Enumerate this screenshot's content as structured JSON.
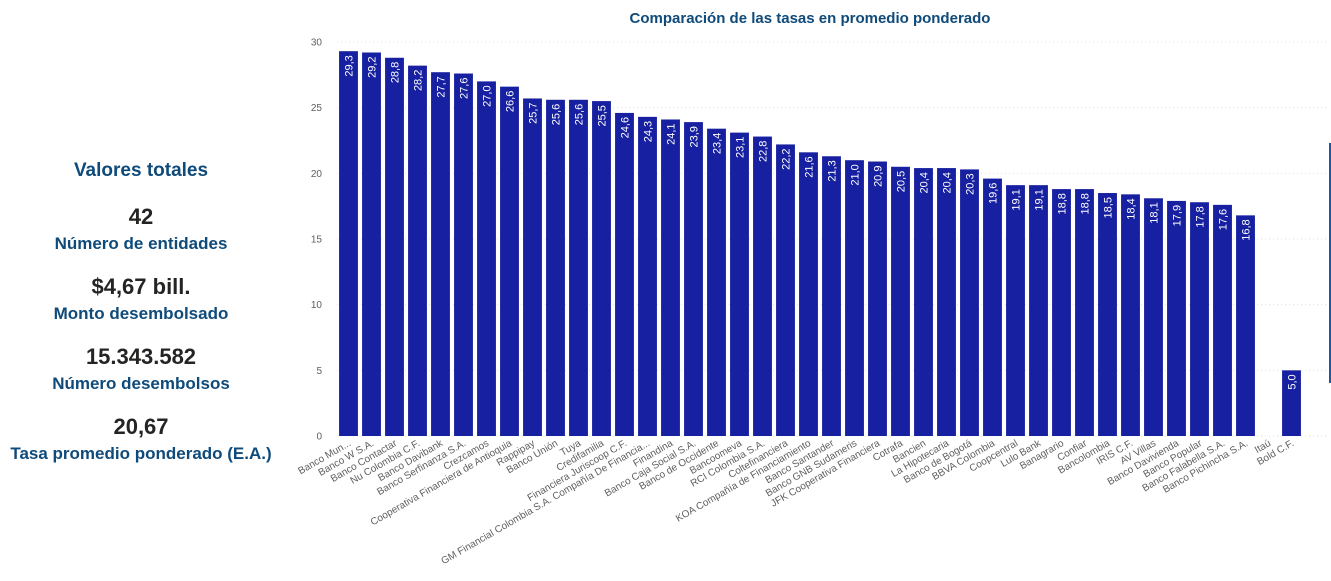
{
  "kpis": {
    "heading": "Valores totales",
    "items": [
      {
        "value": "42",
        "label": "Número de entidades"
      },
      {
        "value": "$4,67 bill.",
        "label": "Monto desembolsado"
      },
      {
        "value": "15.343.582",
        "label": "Número desembolsos"
      },
      {
        "value": "20,67",
        "label": "Tasa promedio ponderado (E.A.)"
      }
    ]
  },
  "colors": {
    "bar": "#1620a0",
    "accent": "#0e4a7a"
  },
  "chart_data": {
    "type": "bar",
    "title": "Comparación de las tasas en promedio ponderado",
    "xlabel": "",
    "ylabel": "",
    "ylim": [
      0,
      30
    ],
    "yticks": [
      0,
      5,
      10,
      15,
      20,
      25,
      30
    ],
    "grid": true,
    "categories": [
      "Banco Mun...",
      "Banco W S.A.",
      "Banco Contactar",
      "Nu Colombia C.F.",
      "Banco Davibank",
      "Banco Serfinanza S.A.",
      "Crezcamos",
      "Cooperativa Financiera de Antioquia",
      "Rappipay",
      "Banco Unión",
      "Tuya",
      "Credifamilia",
      "Financiera Juriscoop C.F.",
      "GM Financial Colombia S.A. Compañía De Financia...",
      "Finandina",
      "Banco Caja Social S.A.",
      "Banco de Occidente",
      "Bancoomeva",
      "RCI Colombia S.A.",
      "Coltefinanciera",
      "KOA Compañía de Financiamiento",
      "Banco Santander",
      "Banco GNB Sudameris",
      "JFK Cooperativa Financiera",
      "Cotrafa",
      "Bancien",
      "La Hipotecaria",
      "Banco de Bogotá",
      "BBVA Colombia",
      "Coopcentral",
      "Lulo Bank",
      "Banagrario",
      "Confiar",
      "Bancolombia",
      "IRIS C.F.",
      "AV Villas",
      "Banco Davivienda",
      "Banco Popular",
      "Banco Falabella S.A.",
      "Banco Pichincha S.A.",
      "Itaú",
      "Bold C.F."
    ],
    "values": [
      29.3,
      29.2,
      28.8,
      28.2,
      27.7,
      27.6,
      27.0,
      26.6,
      25.7,
      25.6,
      25.6,
      25.5,
      24.6,
      24.3,
      24.1,
      23.9,
      23.4,
      23.1,
      22.8,
      22.2,
      21.6,
      21.3,
      21.0,
      20.9,
      20.5,
      20.4,
      20.4,
      20.3,
      19.6,
      19.1,
      19.1,
      18.8,
      18.8,
      18.5,
      18.4,
      18.1,
      17.9,
      17.8,
      17.6,
      16.8,
      null,
      5.0
    ],
    "data_labels": [
      "29,3",
      "29,2",
      "28,8",
      "28,2",
      "27,7",
      "27,6",
      "27,0",
      "26,6",
      "25,7",
      "25,6",
      "25,6",
      "25,5",
      "24,6",
      "24,3",
      "24,1",
      "23,9",
      "23,4",
      "23,1",
      "22,8",
      "22,2",
      "21,6",
      "21,3",
      "21,0",
      "20,9",
      "20,5",
      "20,4",
      "20,4",
      "20,3",
      "19,6",
      "19,1",
      "19,1",
      "18,8",
      "18,8",
      "18,5",
      "18,4",
      "18,1",
      "17,9",
      "17,8",
      "17,6",
      "16,8",
      "",
      "5,0"
    ]
  }
}
